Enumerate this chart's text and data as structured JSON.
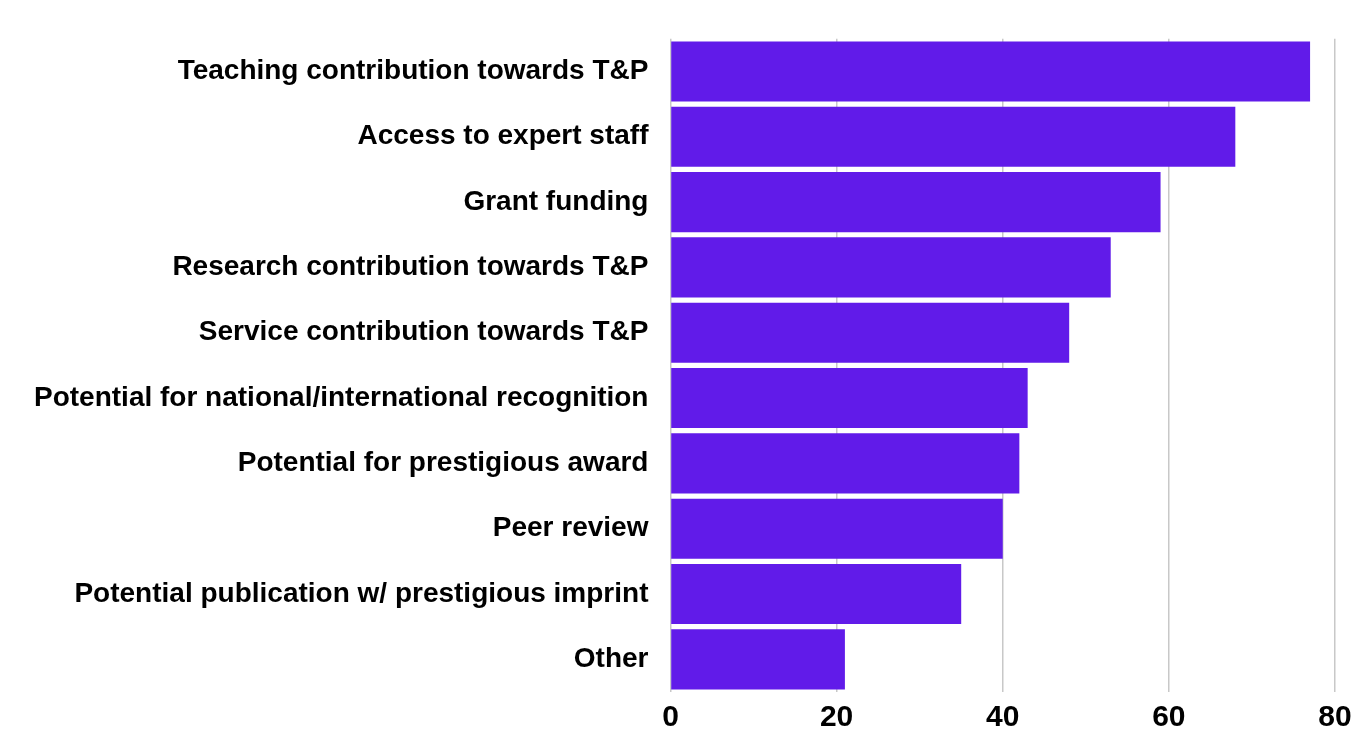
{
  "chart_data": {
    "type": "bar",
    "orientation": "horizontal",
    "categories": [
      "Teaching contribution towards T&P",
      "Access to expert staff",
      "Grant funding",
      "Research contribution towards T&P",
      "Service contribution towards T&P",
      "Potential for national/international recognition",
      "Potential for prestigious award",
      "Peer review",
      "Potential publication w/ prestigious imprint",
      "Other"
    ],
    "values": [
      77,
      68,
      59,
      53,
      48,
      43,
      42,
      40,
      35,
      21
    ],
    "color": "#611be9",
    "xlim": [
      0,
      80
    ],
    "xticks": [
      0,
      20,
      40,
      60,
      80
    ],
    "grid": "x"
  }
}
